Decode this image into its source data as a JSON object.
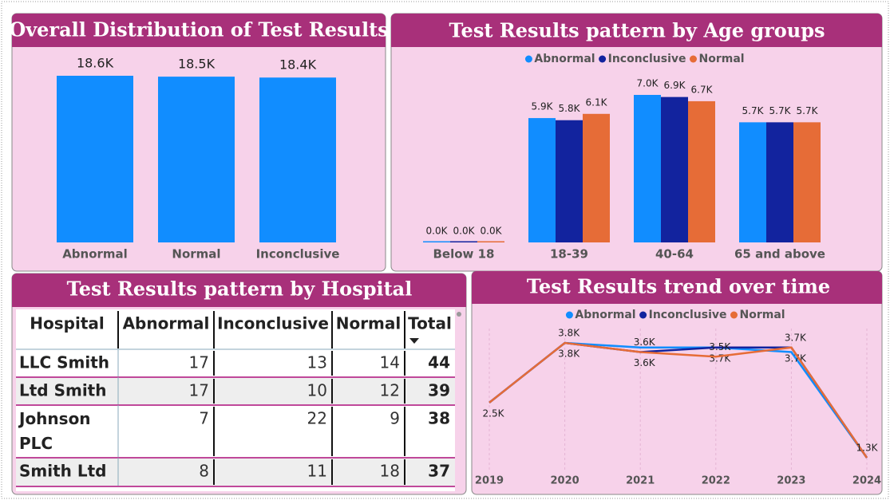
{
  "chart_data": [
    {
      "type": "bar",
      "title": "Overall Distribution of Test Results",
      "categories": [
        "Abnormal",
        "Normal",
        "Inconclusive"
      ],
      "values": [
        18600,
        18500,
        18400
      ],
      "value_labels": [
        "18.6K",
        "18.5K",
        "18.4K"
      ],
      "color": "#118dff"
    },
    {
      "type": "grouped-bar",
      "title": "Test Results pattern by Age groups",
      "categories": [
        "Below 18",
        "18-39",
        "40-64",
        "65 and above"
      ],
      "legend": "top",
      "series": [
        {
          "name": "Abnormal",
          "color": "#118dff",
          "values": [
            0,
            5900,
            7000,
            5700
          ],
          "value_labels": [
            "0.0K",
            "5.9K",
            "7.0K",
            "5.7K"
          ]
        },
        {
          "name": "Inconclusive",
          "color": "#12239e",
          "values": [
            0,
            5800,
            6900,
            5700
          ],
          "value_labels": [
            "0.0K",
            "5.8K",
            "6.9K",
            "5.7K"
          ]
        },
        {
          "name": "Normal",
          "color": "#e66c37",
          "values": [
            0,
            6100,
            6700,
            5700
          ],
          "value_labels": [
            "0.0K",
            "6.1K",
            "6.7K",
            "5.7K"
          ]
        }
      ]
    },
    {
      "type": "line",
      "title": "Test Results trend over time",
      "categories": [
        "2019",
        "2020",
        "2021",
        "2022",
        "2023",
        "2024"
      ],
      "legend": "top",
      "series": [
        {
          "name": "Abnormal",
          "color": "#118dff",
          "values": [
            2500,
            3800,
            3700,
            3700,
            3600,
            1300
          ],
          "value_labels": [
            "2.5K",
            null,
            null,
            null,
            null,
            null
          ]
        },
        {
          "name": "Inconclusive",
          "color": "#12239e",
          "values": [
            2500,
            3800,
            3600,
            3700,
            3700,
            1300
          ],
          "value_labels": [
            null,
            "3.8K",
            "3.6K",
            "3.7K",
            "3.7K",
            null
          ]
        },
        {
          "name": "Normal",
          "color": "#e66c37",
          "values": [
            2500,
            3800,
            3600,
            3500,
            3700,
            1300
          ],
          "value_labels": [
            null,
            "3.8K",
            "3.6K",
            "3.5K",
            "3.7K",
            "1.3K"
          ]
        }
      ]
    }
  ],
  "table": {
    "title": "Test Results pattern by Hospital",
    "header": [
      "Hospital",
      "Abnormal",
      "Inconclusive",
      "Normal",
      "Total"
    ],
    "rows": [
      [
        "LLC Smith",
        17,
        13,
        14,
        44
      ],
      [
        "Ltd Smith",
        17,
        10,
        12,
        39
      ],
      [
        "Johnson PLC",
        7,
        22,
        9,
        38
      ],
      [
        "Smith Ltd",
        8,
        11,
        18,
        37
      ]
    ]
  }
}
